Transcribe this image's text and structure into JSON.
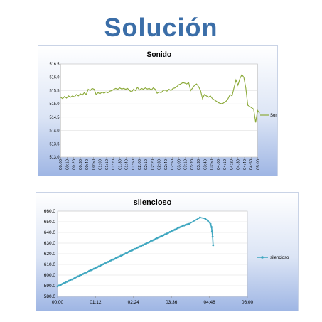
{
  "page": {
    "title": "Solución"
  },
  "chart_data": [
    {
      "type": "line",
      "title": "Sonido",
      "xlabel": "",
      "ylabel": "",
      "ylim": [
        513.0,
        516.5
      ],
      "y_ticks": [
        "513.0",
        "513.5",
        "514.0",
        "514.5",
        "515.0",
        "515.5",
        "516.0",
        "516.5"
      ],
      "categories": [
        "00:00",
        "00:10",
        "00:20",
        "00:30",
        "00:40",
        "00:50",
        "01:00",
        "01:10",
        "01:20",
        "01:30",
        "01:40",
        "01:50",
        "02:00",
        "02:10",
        "02:20",
        "02:30",
        "02:40",
        "02:50",
        "03:00",
        "03:10",
        "03:20",
        "03:30",
        "03:40",
        "03:50",
        "04:00",
        "04:10",
        "04:20",
        "04:30",
        "04:40",
        "04:50",
        "05:00"
      ],
      "series": [
        {
          "name": "Sonido",
          "color": "#8caa3a",
          "points": [
            [
              0,
              515.25
            ],
            [
              0.3,
              515.2
            ],
            [
              0.6,
              515.28
            ],
            [
              0.9,
              515.22
            ],
            [
              1.2,
              515.3
            ],
            [
              1.5,
              515.25
            ],
            [
              1.8,
              515.3
            ],
            [
              2.1,
              515.26
            ],
            [
              2.4,
              515.35
            ],
            [
              2.7,
              515.3
            ],
            [
              3.0,
              515.38
            ],
            [
              3.3,
              515.33
            ],
            [
              3.6,
              515.42
            ],
            [
              3.9,
              515.35
            ],
            [
              4.2,
              515.55
            ],
            [
              4.5,
              515.5
            ],
            [
              4.8,
              515.58
            ],
            [
              5.1,
              515.55
            ],
            [
              5.4,
              515.35
            ],
            [
              5.7,
              515.42
            ],
            [
              6.0,
              515.38
            ],
            [
              6.3,
              515.45
            ],
            [
              6.6,
              515.4
            ],
            [
              6.9,
              515.45
            ],
            [
              7.2,
              515.42
            ],
            [
              7.5,
              515.48
            ],
            [
              7.8,
              515.5
            ],
            [
              8.1,
              515.55
            ],
            [
              8.4,
              515.58
            ],
            [
              8.7,
              515.55
            ],
            [
              9.0,
              515.6
            ],
            [
              9.3,
              515.56
            ],
            [
              9.6,
              515.58
            ],
            [
              9.9,
              515.55
            ],
            [
              10.2,
              515.58
            ],
            [
              10.5,
              515.5
            ],
            [
              10.8,
              515.45
            ],
            [
              11.1,
              515.55
            ],
            [
              11.4,
              515.5
            ],
            [
              11.7,
              515.62
            ],
            [
              12.0,
              515.52
            ],
            [
              12.3,
              515.58
            ],
            [
              12.6,
              515.55
            ],
            [
              12.9,
              515.6
            ],
            [
              13.2,
              515.56
            ],
            [
              13.5,
              515.58
            ],
            [
              13.8,
              515.52
            ],
            [
              14.1,
              515.6
            ],
            [
              14.4,
              515.55
            ],
            [
              14.7,
              515.4
            ],
            [
              15.0,
              515.45
            ],
            [
              15.3,
              515.42
            ],
            [
              15.6,
              515.5
            ],
            [
              15.9,
              515.52
            ],
            [
              16.2,
              515.48
            ],
            [
              16.5,
              515.55
            ],
            [
              16.8,
              515.5
            ],
            [
              17.1,
              515.58
            ],
            [
              17.4,
              515.6
            ],
            [
              17.7,
              515.65
            ],
            [
              18.0,
              515.72
            ],
            [
              18.3,
              515.75
            ],
            [
              18.6,
              515.8
            ],
            [
              18.9,
              515.78
            ],
            [
              19.2,
              515.75
            ],
            [
              19.5,
              515.8
            ],
            [
              19.8,
              515.5
            ],
            [
              20.1,
              515.6
            ],
            [
              20.4,
              515.7
            ],
            [
              20.7,
              515.75
            ],
            [
              21.0,
              515.65
            ],
            [
              21.3,
              515.5
            ],
            [
              21.6,
              515.2
            ],
            [
              21.9,
              515.35
            ],
            [
              22.2,
              515.3
            ],
            [
              22.5,
              515.25
            ],
            [
              22.8,
              515.3
            ],
            [
              23.1,
              515.2
            ],
            [
              23.4,
              515.15
            ],
            [
              23.7,
              515.1
            ],
            [
              24.0,
              515.05
            ],
            [
              24.3,
              515.02
            ],
            [
              24.6,
              515.0
            ],
            [
              24.9,
              515.05
            ],
            [
              25.2,
              515.1
            ],
            [
              25.5,
              515.2
            ],
            [
              25.8,
              515.35
            ],
            [
              26.1,
              515.3
            ],
            [
              26.4,
              515.6
            ],
            [
              26.7,
              515.9
            ],
            [
              27.0,
              515.7
            ],
            [
              27.3,
              515.95
            ],
            [
              27.6,
              516.1
            ],
            [
              27.9,
              516.0
            ],
            [
              28.2,
              515.6
            ],
            [
              28.5,
              514.95
            ],
            [
              28.8,
              514.9
            ],
            [
              29.1,
              514.85
            ],
            [
              29.4,
              514.8
            ],
            [
              29.7,
              514.3
            ],
            [
              30.0,
              514.75
            ],
            [
              30.3,
              514.65
            ]
          ]
        }
      ]
    },
    {
      "type": "line",
      "title": "silencioso",
      "xlabel": "",
      "ylabel": "",
      "ylim": [
        580.0,
        660.0
      ],
      "y_ticks": [
        "580.0",
        "590.0",
        "600.0",
        "610.0",
        "620.0",
        "630.0",
        "640.0",
        "650.0",
        "660.0"
      ],
      "x_ticks": [
        "00:00",
        "01:12",
        "02:24",
        "03:36",
        "04:48",
        "06:00"
      ],
      "x_range_minutes": [
        0,
        360
      ],
      "series": [
        {
          "name": "silencioso",
          "color": "#3fa7c0",
          "rise_start": [
            0,
            589.5
          ],
          "peak": [
            270,
            654
          ],
          "tail": [
            [
              270,
              654
            ],
            [
              280,
              653
            ],
            [
              285,
              651
            ],
            [
              290,
              648
            ],
            [
              292,
              645
            ],
            [
              293,
              641
            ],
            [
              294,
              636
            ],
            [
              295,
              628
            ]
          ]
        }
      ]
    }
  ]
}
